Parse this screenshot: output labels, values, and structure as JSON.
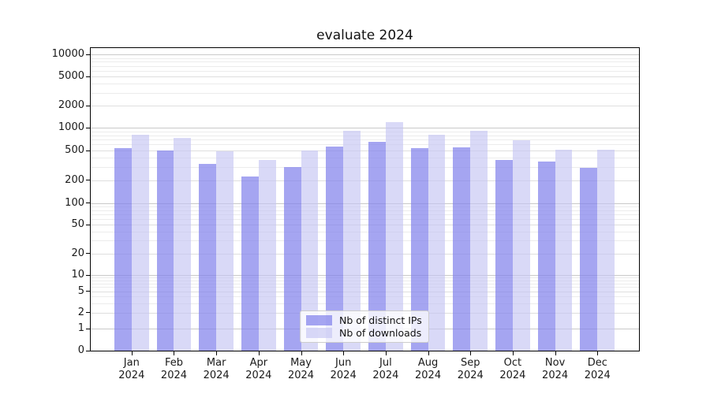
{
  "title": "evaluate 2024",
  "chart_data": {
    "type": "bar",
    "title": "evaluate 2024",
    "categories": [
      "Jan 2024",
      "Feb 2024",
      "Mar 2024",
      "Apr 2024",
      "May 2024",
      "Jun 2024",
      "Jul 2024",
      "Aug 2024",
      "Sep 2024",
      "Oct 2024",
      "Nov 2024",
      "Dec 2024"
    ],
    "series": [
      {
        "name": "Nb of distinct IPs",
        "color": "rgba(130,130,236,0.72)",
        "values": [
          535,
          505,
          335,
          225,
          300,
          560,
          650,
          535,
          545,
          370,
          355,
          295
        ]
      },
      {
        "name": "Nb of downloads",
        "color": "rgba(196,196,243,0.65)",
        "values": [
          810,
          735,
          490,
          370,
          500,
          915,
          1190,
          815,
          910,
          690,
          510,
          510
        ]
      }
    ],
    "yscale": "symlog",
    "ylim": [
      0,
      11800
    ],
    "yticks": [
      0,
      1,
      2,
      5,
      10,
      20,
      50,
      100,
      200,
      500,
      1000,
      2000,
      5000,
      10000
    ],
    "grid": true,
    "legend_position": "lower center"
  },
  "legend": {
    "bg": "rgba(255,255,255,0.8)",
    "items": [
      "Nb of distinct IPs",
      "Nb of downloads"
    ]
  },
  "colors": {
    "grid_power10": "#c9c9c9",
    "grid_labeled": "#dedede",
    "grid_minor": "#ececec",
    "axis": "#000000",
    "text": "#1a1a1a"
  }
}
